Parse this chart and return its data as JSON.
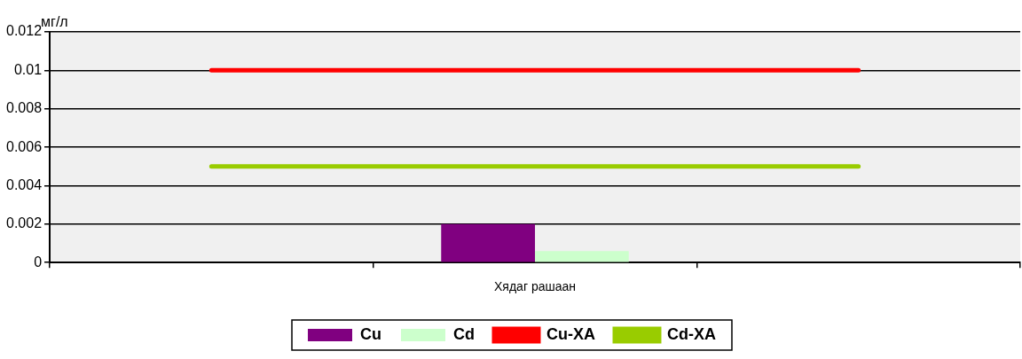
{
  "chart_data": {
    "type": "bar",
    "ylabel": "мг/л",
    "categories": [
      null,
      "Хядаг рашаан",
      null
    ],
    "series": [
      {
        "name": "Cu",
        "color": "#800080",
        "values": [
          null,
          0.002,
          null
        ]
      },
      {
        "name": "Cd",
        "color": "#ccffcc",
        "values": [
          null,
          0.0006,
          null
        ]
      },
      {
        "name": "Cu-XA",
        "type": "line",
        "color": "#ff0000",
        "values": [
          0.01,
          0.01,
          0.01
        ]
      },
      {
        "name": "Cd-XA",
        "type": "line",
        "color": "#99cc00",
        "values": [
          0.005,
          0.005,
          0.005
        ]
      }
    ],
    "ylim": [
      0,
      0.012
    ],
    "yticks": [
      0,
      0.002,
      0.004,
      0.006,
      0.008,
      0.01,
      0.012
    ],
    "grid": "y",
    "legend": "bottom",
    "marker": "none"
  }
}
